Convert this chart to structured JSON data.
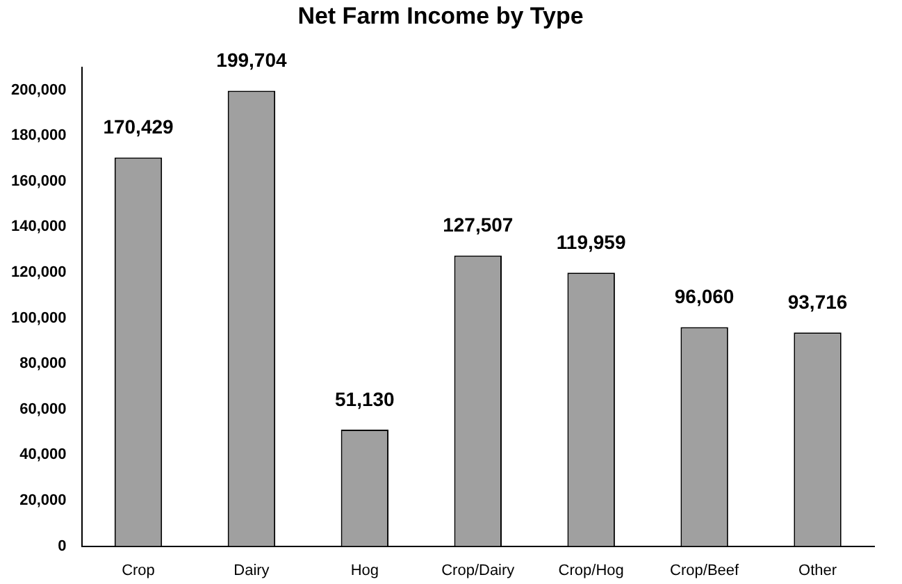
{
  "chart_data": {
    "type": "bar",
    "title": "Net Farm Income by Type",
    "categories": [
      "Crop",
      "Dairy",
      "Hog",
      "Crop/Dairy",
      "Crop/Hog",
      "Crop/Beef",
      "Other"
    ],
    "values": [
      170429,
      199704,
      51130,
      127507,
      119959,
      96060,
      93716
    ],
    "value_labels": [
      "170,429",
      "199,704",
      "51,130",
      "127,507",
      "119,959",
      "96,060",
      "93,716"
    ],
    "color": "#a0a0a0",
    "ylim": [
      0,
      210000
    ],
    "yticks": [
      0,
      {
        "value": 20000,
        "label": "20,000"
      },
      {
        "value": 40000,
        "label": "40,000"
      },
      {
        "value": 60000,
        "label": "60,000"
      },
      {
        "value": 80000,
        "label": "80,000"
      },
      {
        "value": 100000,
        "label": "100,000"
      },
      {
        "value": 120000,
        "label": "120,000"
      },
      {
        "value": 140000,
        "label": "140,000"
      },
      {
        "value": 160000,
        "label": "160,000"
      },
      {
        "value": 180000,
        "label": "180,000"
      },
      {
        "value": 200000,
        "label": "200,000"
      }
    ],
    "grid": false,
    "legend": false
  }
}
